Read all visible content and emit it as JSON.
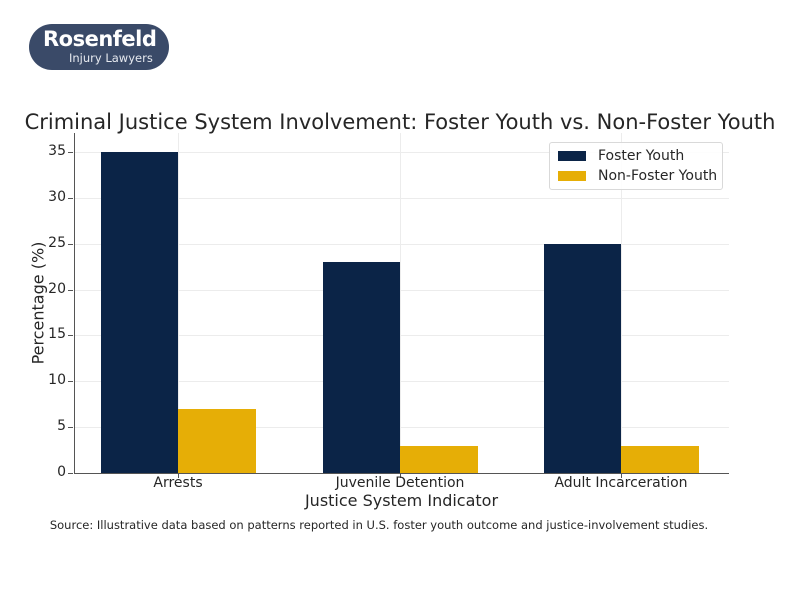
{
  "logo": {
    "name": "Rosenfeld",
    "subtitle": "Injury Lawyers",
    "background": "#3a4a68"
  },
  "chart_data": {
    "type": "bar",
    "title": "Criminal Justice System Involvement: Foster Youth vs. Non-Foster Youth",
    "xlabel": "Justice System Indicator",
    "ylabel": "Percentage (%)",
    "categories": [
      "Arrests",
      "Juvenile Detention",
      "Adult Incarceration"
    ],
    "series": [
      {
        "name": "Foster Youth",
        "values": [
          35,
          23,
          25
        ],
        "color": "#0b2447"
      },
      {
        "name": "Non-Foster Youth",
        "values": [
          7,
          3,
          3
        ],
        "color": "#e6ae06"
      }
    ],
    "ylim": [
      0,
      37
    ],
    "yticks": [
      0,
      5,
      10,
      15,
      20,
      25,
      30,
      35
    ],
    "grid": true,
    "legend_position": "upper right",
    "source_note": "Source: Illustrative data based on patterns reported in U.S. foster youth outcome and justice-involvement studies."
  }
}
